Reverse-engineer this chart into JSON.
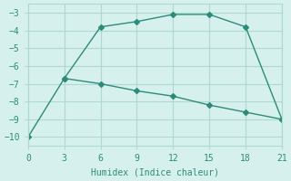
{
  "line1_x": [
    3,
    6,
    9,
    12,
    15,
    18,
    21
  ],
  "line1_y": [
    -6.7,
    -3.8,
    -3.5,
    -3.1,
    -3.1,
    -3.8,
    -9.0
  ],
  "line2_x": [
    0,
    3,
    6,
    9,
    12,
    15,
    18,
    21
  ],
  "line2_y": [
    -10.0,
    -6.7,
    -7.0,
    -7.4,
    -7.7,
    -8.2,
    -8.6,
    -9.0
  ],
  "line_color": "#2d8b7a",
  "bg_color": "#d6f0ed",
  "grid_color": "#aed8d2",
  "xlabel": "Humidex (Indice chaleur)",
  "xlim": [
    0,
    21
  ],
  "ylim": [
    -10.5,
    -2.5
  ],
  "yticks": [
    -10,
    -9,
    -8,
    -7,
    -6,
    -5,
    -4,
    -3
  ],
  "xticks": [
    0,
    3,
    6,
    9,
    12,
    15,
    18,
    21
  ],
  "marker": "D",
  "markersize": 3,
  "linewidth": 1.0
}
